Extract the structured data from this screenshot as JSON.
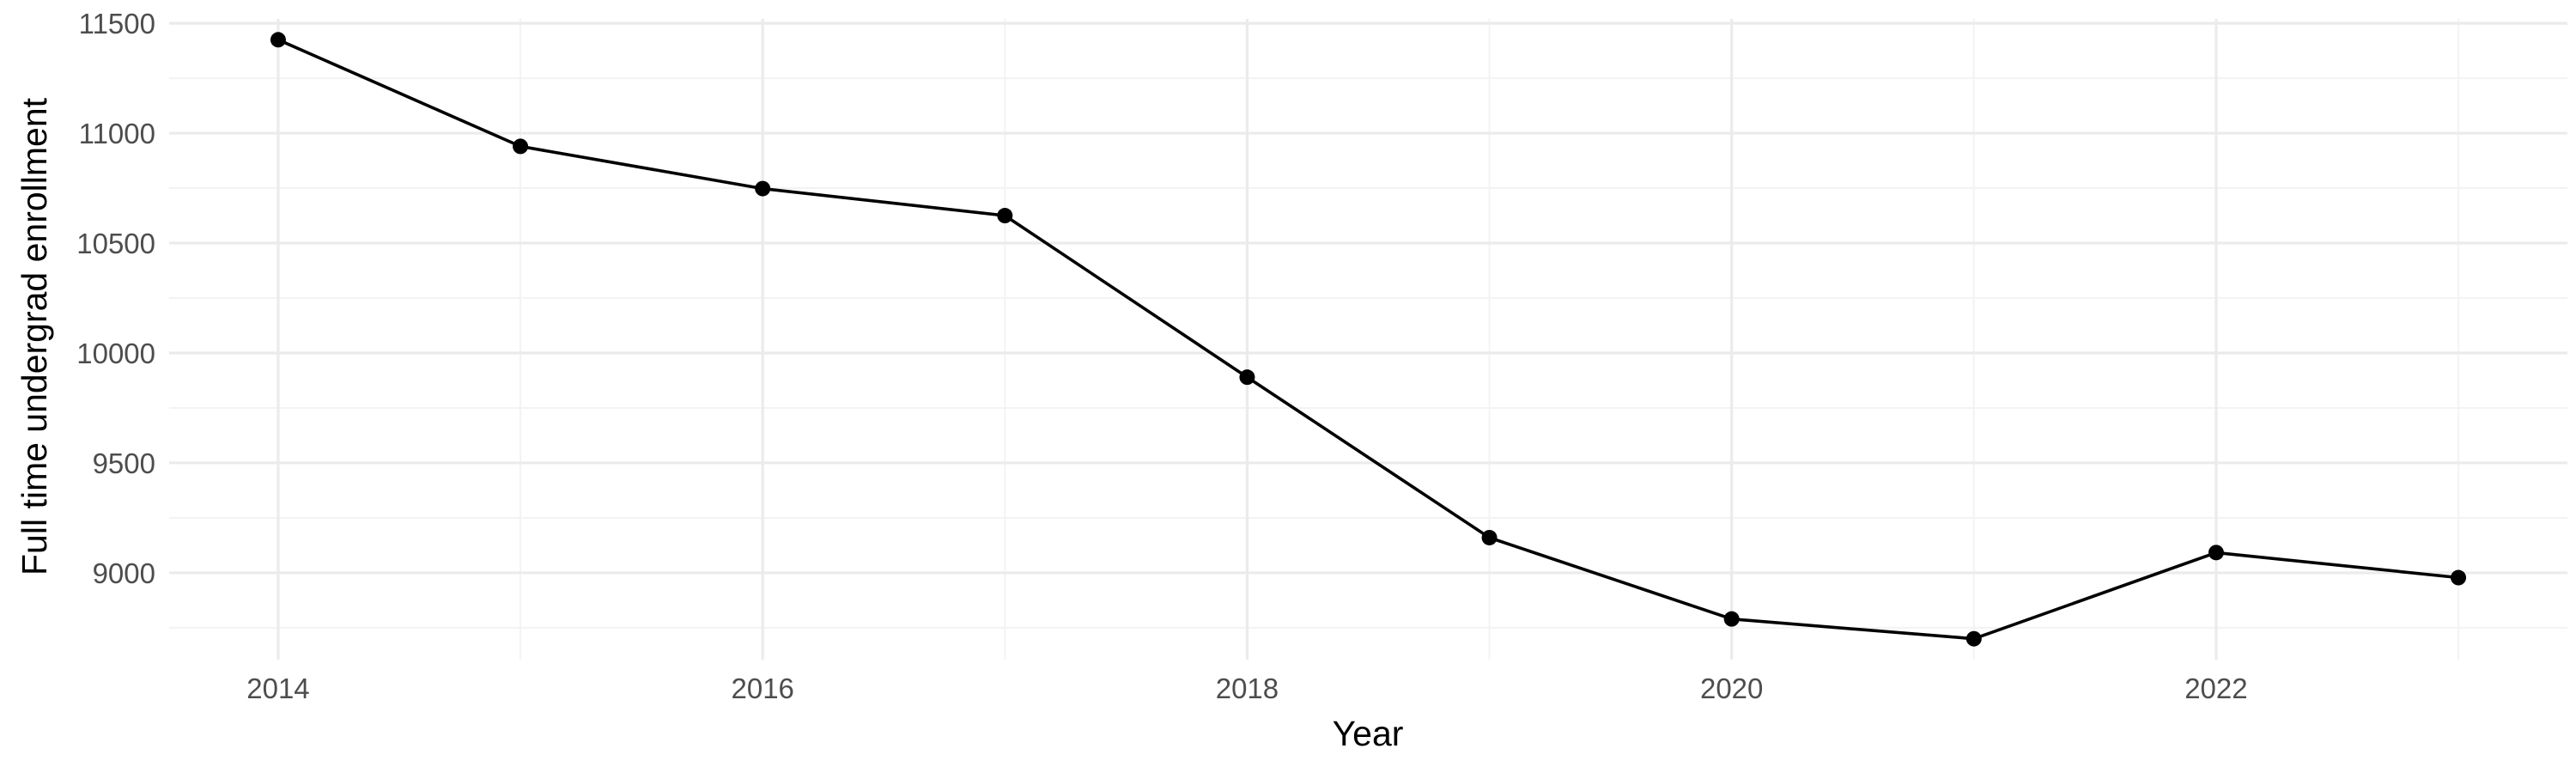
{
  "chart_data": {
    "type": "line",
    "title": "",
    "xlabel": "Year",
    "ylabel": "Full time undergrad enrollment",
    "x": [
      2014,
      2015,
      2016,
      2017,
      2018,
      2019,
      2020,
      2021,
      2022,
      2023
    ],
    "series": [
      {
        "values": [
          11425,
          10940,
          10748,
          10625,
          9890,
          9160,
          8790,
          8700,
          9092,
          8978
        ]
      }
    ],
    "xlim": [
      2013.55,
      2023.45
    ],
    "ylim": [
      8605,
      11520
    ],
    "x_ticks": [
      2014,
      2016,
      2018,
      2020,
      2022
    ],
    "x_tick_labels": [
      "2014",
      "2016",
      "2018",
      "2020",
      "2022"
    ],
    "y_ticks": [
      9000,
      9500,
      10000,
      10500,
      11000,
      11500
    ],
    "y_tick_labels": [
      "9000",
      "9500",
      "10000",
      "10500",
      "11000",
      "11500"
    ],
    "grid": true,
    "legend": "none",
    "colors": {
      "line": "#000000",
      "points": "#000000",
      "grid_major": "#ebebeb",
      "grid_minor": "#f3f3f3",
      "tick_text": "#4d4d4d",
      "background": "#ffffff"
    }
  }
}
